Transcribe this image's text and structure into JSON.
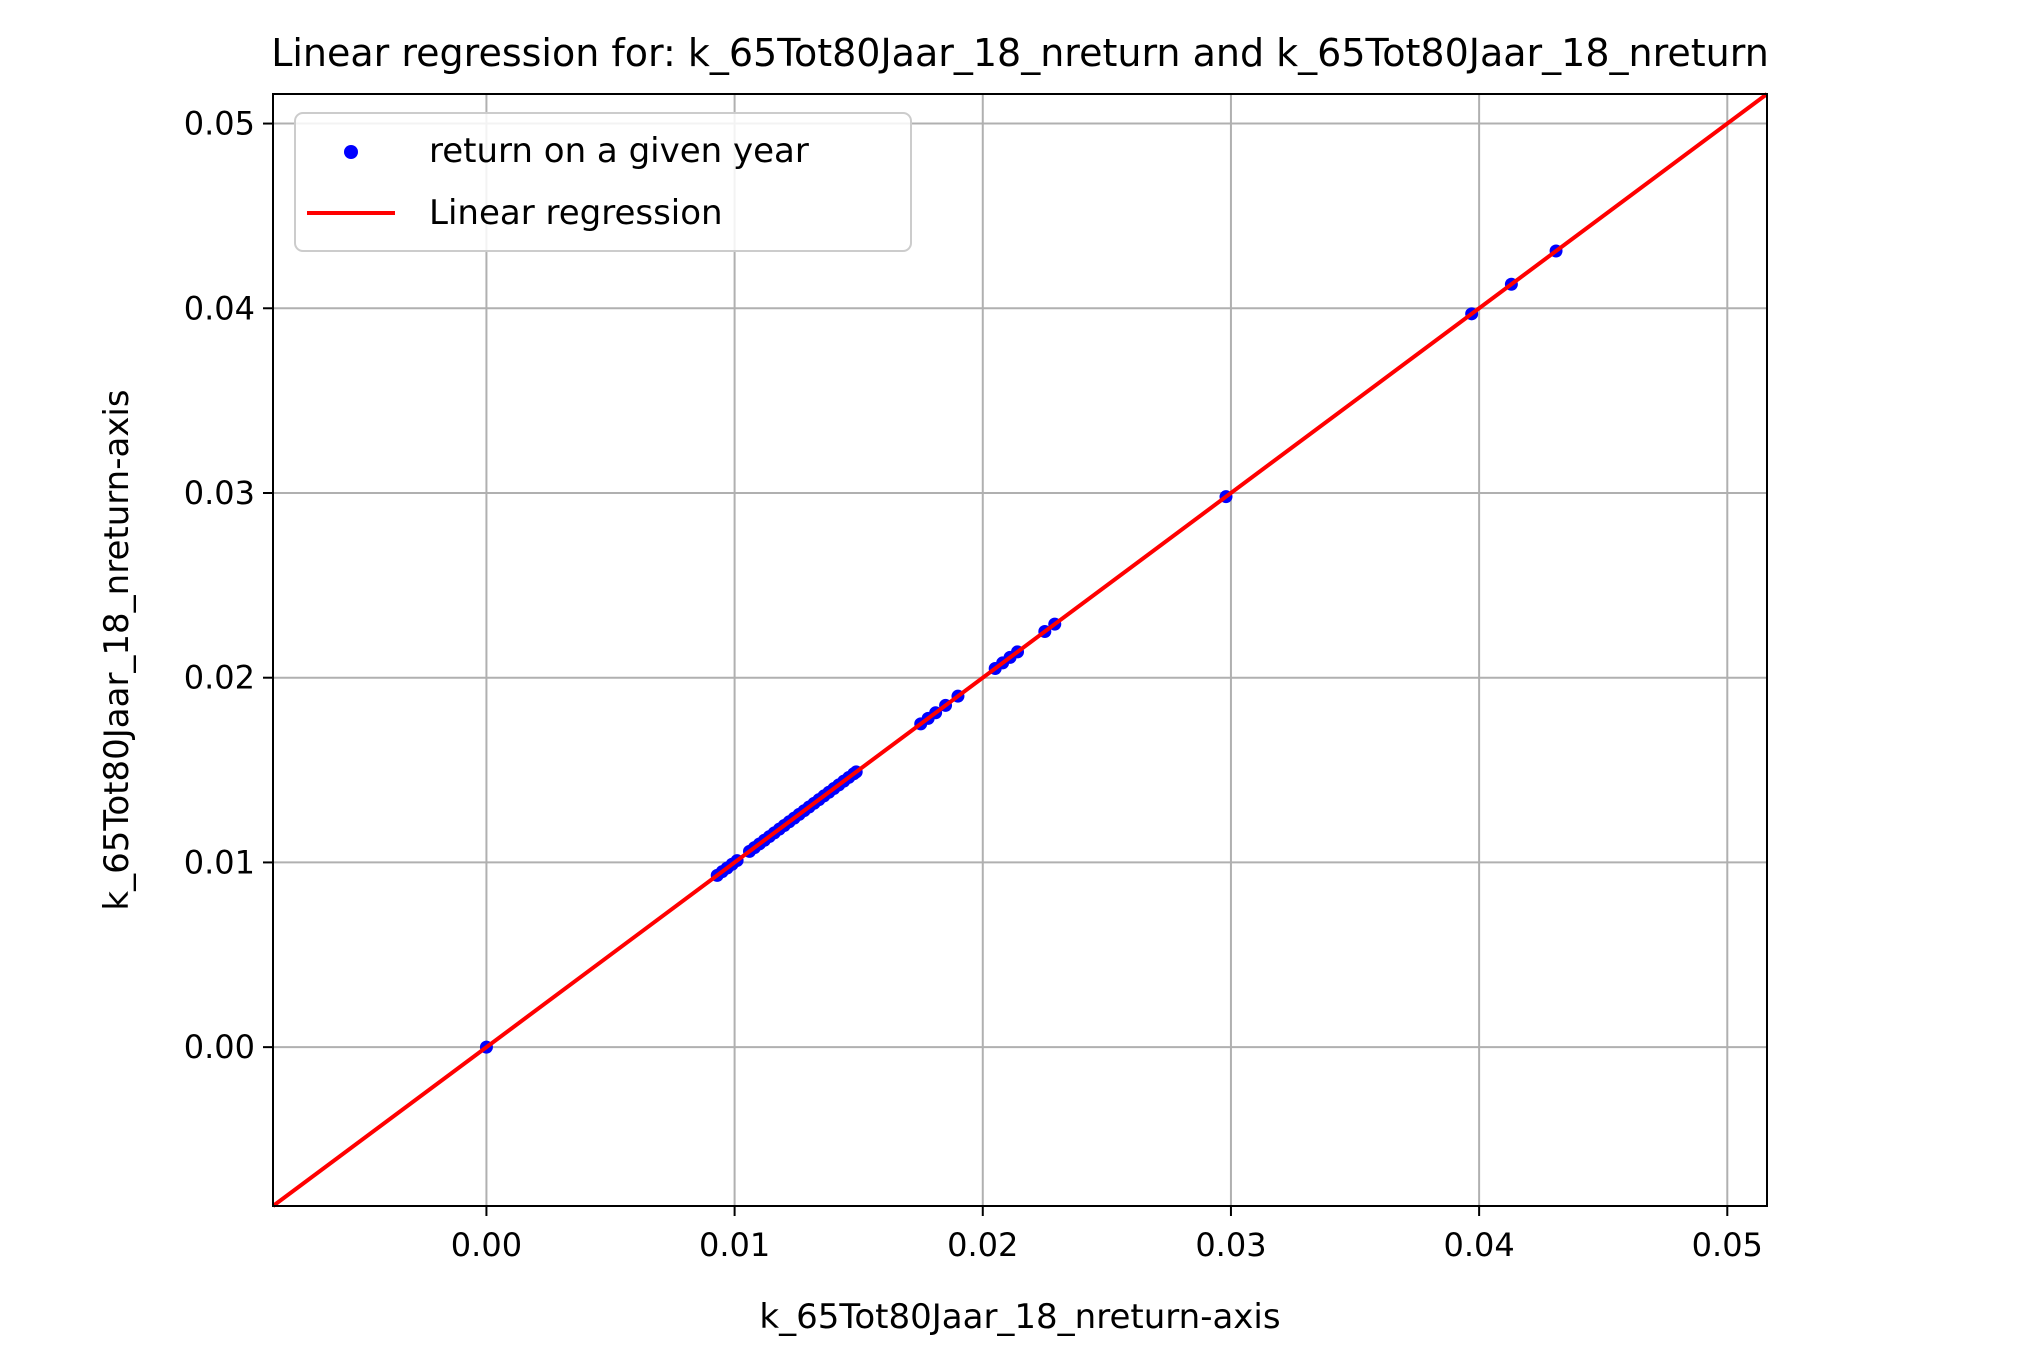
{
  "chart_data": {
    "type": "scatter",
    "title": "Linear regression for: k_65Tot80Jaar_18_nreturn and k_65Tot80Jaar_18_nreturn",
    "xlabel": "k_65Tot80Jaar_18_nreturn-axis",
    "ylabel": "k_65Tot80Jaar_18_nreturn-axis",
    "xlim": [
      -0.0086,
      0.0516
    ],
    "ylim": [
      -0.0086,
      0.0516
    ],
    "xticks": [
      0.0,
      0.01,
      0.02,
      0.03,
      0.04,
      0.05
    ],
    "yticks": [
      0.0,
      0.01,
      0.02,
      0.03,
      0.04,
      0.05
    ],
    "xtick_labels": [
      "0.00",
      "0.01",
      "0.02",
      "0.03",
      "0.04",
      "0.05"
    ],
    "ytick_labels": [
      "0.00",
      "0.01",
      "0.02",
      "0.03",
      "0.04",
      "0.05"
    ],
    "grid": true,
    "legend_position": "top-left",
    "series": [
      {
        "name": "return on a given year",
        "kind": "scatter",
        "color": "#0000ff",
        "x": [
          0.0,
          0.0093,
          0.0095,
          0.0097,
          0.0099,
          0.0101,
          0.0106,
          0.0108,
          0.011,
          0.0112,
          0.0114,
          0.0116,
          0.0118,
          0.012,
          0.0122,
          0.0124,
          0.0126,
          0.0128,
          0.013,
          0.0132,
          0.0134,
          0.0136,
          0.0138,
          0.014,
          0.0142,
          0.0144,
          0.0146,
          0.0148,
          0.0149,
          0.0175,
          0.0178,
          0.0181,
          0.0185,
          0.019,
          0.0205,
          0.0208,
          0.0211,
          0.0214,
          0.0225,
          0.0229,
          0.0298,
          0.0397,
          0.0413,
          0.0431
        ],
        "y": [
          0.0,
          0.0093,
          0.0095,
          0.0097,
          0.0099,
          0.0101,
          0.0106,
          0.0108,
          0.011,
          0.0112,
          0.0114,
          0.0116,
          0.0118,
          0.012,
          0.0122,
          0.0124,
          0.0126,
          0.0128,
          0.013,
          0.0132,
          0.0134,
          0.0136,
          0.0138,
          0.014,
          0.0142,
          0.0144,
          0.0146,
          0.0148,
          0.0149,
          0.0175,
          0.0178,
          0.0181,
          0.0185,
          0.019,
          0.0205,
          0.0208,
          0.0211,
          0.0214,
          0.0225,
          0.0229,
          0.0298,
          0.0397,
          0.0413,
          0.0431
        ]
      },
      {
        "name": "Linear regression",
        "kind": "line",
        "color": "#ff0000",
        "slope": 1.0,
        "intercept": 0.0
      }
    ]
  }
}
